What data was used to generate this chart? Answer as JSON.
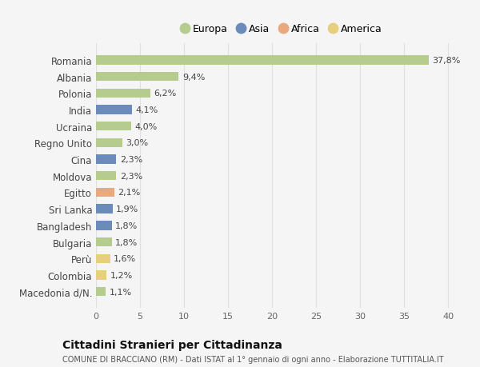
{
  "countries": [
    "Romania",
    "Albania",
    "Polonia",
    "India",
    "Ucraina",
    "Regno Unito",
    "Cina",
    "Moldova",
    "Egitto",
    "Sri Lanka",
    "Bangladesh",
    "Bulgaria",
    "Perù",
    "Colombia",
    "Macedonia d/N."
  ],
  "values": [
    37.8,
    9.4,
    6.2,
    4.1,
    4.0,
    3.0,
    2.3,
    2.3,
    2.1,
    1.9,
    1.8,
    1.8,
    1.6,
    1.2,
    1.1
  ],
  "labels": [
    "37,8%",
    "9,4%",
    "6,2%",
    "4,1%",
    "4,0%",
    "3,0%",
    "2,3%",
    "2,3%",
    "2,1%",
    "1,9%",
    "1,8%",
    "1,8%",
    "1,6%",
    "1,2%",
    "1,1%"
  ],
  "continents": [
    "Europa",
    "Europa",
    "Europa",
    "Asia",
    "Europa",
    "Europa",
    "Asia",
    "Europa",
    "Africa",
    "Asia",
    "Asia",
    "Europa",
    "America",
    "America",
    "Europa"
  ],
  "colors": {
    "Europa": "#b5cc8e",
    "Asia": "#6b8cba",
    "Africa": "#e8a97e",
    "America": "#e8cf7e"
  },
  "legend_order": [
    "Europa",
    "Asia",
    "Africa",
    "America"
  ],
  "title": "Cittadini Stranieri per Cittadinanza",
  "subtitle": "COMUNE DI BRACCIANO (RM) - Dati ISTAT al 1° gennaio di ogni anno - Elaborazione TUTTITALIA.IT",
  "xlim": [
    0,
    42
  ],
  "xticks": [
    0,
    5,
    10,
    15,
    20,
    25,
    30,
    35,
    40
  ],
  "background_color": "#f5f5f5",
  "grid_color": "#e0e0e0"
}
